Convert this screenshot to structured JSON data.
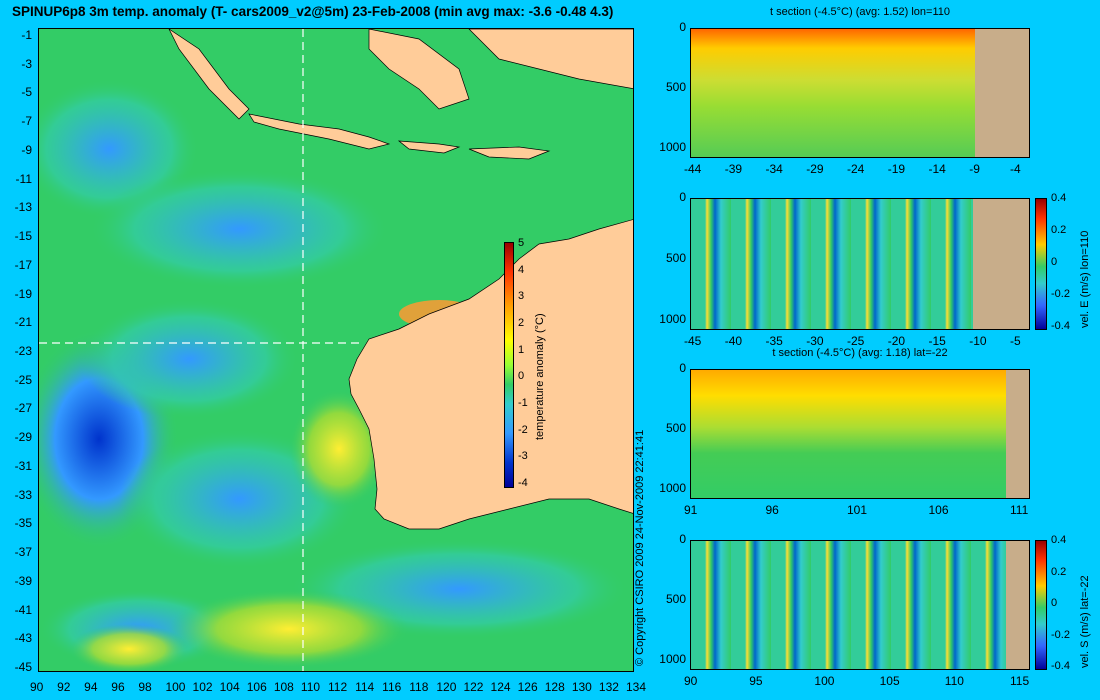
{
  "title": "SPINUP6p8 3m temp. anomaly (T- cars2009_v2@5m) 23-Feb-2008 (min avg max: -3.6 -0.48 4.3)",
  "copyright": "© Copyright CSIRO 2009   24-Nov-2009 22:41:41",
  "map": {
    "y_ticks": [
      "-1",
      "-3",
      "-5",
      "-7",
      "-9",
      "-11",
      "-13",
      "-15",
      "-17",
      "-19",
      "-21",
      "-23",
      "-25",
      "-27",
      "-29",
      "-31",
      "-33",
      "-35",
      "-37",
      "-39",
      "-41",
      "-43",
      "-45"
    ],
    "x_ticks": [
      "90",
      "92",
      "94",
      "96",
      "98",
      "100",
      "102",
      "104",
      "106",
      "108",
      "110",
      "112",
      "114",
      "116",
      "118",
      "120",
      "122",
      "124",
      "126",
      "128",
      "130",
      "132",
      "134"
    ],
    "colorbar": {
      "label": "temperature anomaly (°C)",
      "ticks": [
        "5",
        "4",
        "3",
        "2",
        "1",
        "0",
        "-1",
        "-2",
        "-3",
        "-4"
      ]
    },
    "colors": {
      "land": "#ffcc99",
      "ocean": "#33cc66",
      "cool": "#3399ff",
      "warm": "#ffcc00"
    }
  },
  "panels": [
    {
      "title": "t section (-4.5°C) (avg: 1.52) lon=110",
      "y_ticks": [
        "0",
        "500",
        "1000"
      ],
      "x_ticks": [
        "-44",
        "-39",
        "-34",
        "-29",
        "-24",
        "-19",
        "-14",
        "-9",
        "-4"
      ],
      "colorbar": null
    },
    {
      "title": "",
      "y_ticks": [
        "0",
        "500",
        "1000"
      ],
      "x_ticks": [
        "-45",
        "-40",
        "-35",
        "-30",
        "-25",
        "-20",
        "-15",
        "-10",
        "-5"
      ],
      "colorbar": {
        "label": "vel. E (m/s) lon=110",
        "ticks": [
          "0.4",
          "0.2",
          "0",
          "-0.2",
          "-0.4"
        ]
      }
    },
    {
      "title": "t section (-4.5°C) (avg: 1.18) lat=-22",
      "y_ticks": [
        "0",
        "500",
        "1000"
      ],
      "x_ticks": [
        "91",
        "96",
        "101",
        "106",
        "111"
      ],
      "colorbar": null
    },
    {
      "title": "",
      "y_ticks": [
        "0",
        "500",
        "1000"
      ],
      "x_ticks": [
        "90",
        "95",
        "100",
        "105",
        "110",
        "115"
      ],
      "colorbar": {
        "label": "vel. S (m/s) lat=-22",
        "ticks": [
          "0.4",
          "0.2",
          "0",
          "-0.2",
          "-0.4"
        ]
      }
    }
  ]
}
